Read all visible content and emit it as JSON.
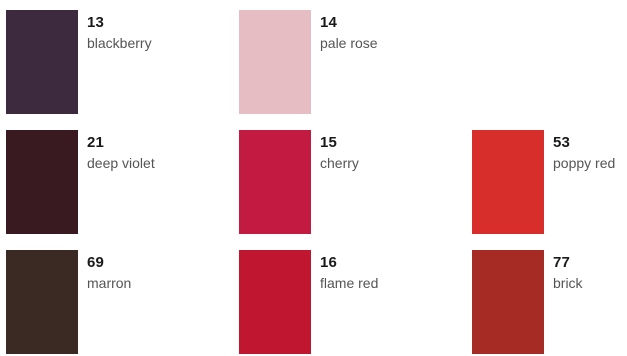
{
  "swatches": [
    {
      "code": "13",
      "name": "blackberry",
      "color": "#3e2a3e"
    },
    {
      "code": "14",
      "name": "pale rose",
      "color": "#e5bdc2"
    },
    {
      "code": "21",
      "name": "deep violet",
      "color": "#381a20"
    },
    {
      "code": "15",
      "name": "cherry",
      "color": "#c31a42"
    },
    {
      "code": "53",
      "name": "poppy red",
      "color": "#d72d2b"
    },
    {
      "code": "69",
      "name": "marron",
      "color": "#3b2a24"
    },
    {
      "code": "16",
      "name": "flame red",
      "color": "#c0162f"
    },
    {
      "code": "77",
      "name": "brick",
      "color": "#a72b25"
    }
  ]
}
